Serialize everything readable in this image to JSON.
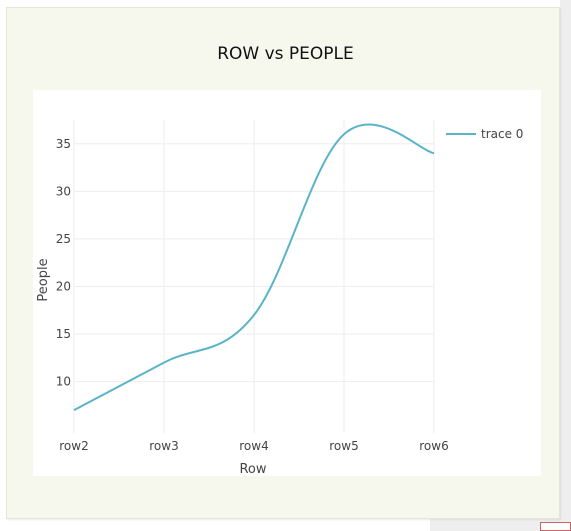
{
  "colors": {
    "panel_background": "#f6f8ee",
    "plot_background": "#ffffff",
    "line": "#5ab4c8",
    "grid": "#eeeeee",
    "text": "#444444"
  },
  "chart_data": {
    "type": "line",
    "title": "ROW vs PEOPLE",
    "xlabel": "Row",
    "ylabel": "People",
    "categories": [
      "row2",
      "row3",
      "row4",
      "row5",
      "row6"
    ],
    "series": [
      {
        "name": "trace 0",
        "values": [
          7,
          12,
          17,
          36,
          34
        ]
      }
    ],
    "yticks": [
      10,
      15,
      20,
      25,
      30,
      35
    ],
    "ylim": [
      4.6,
      37.5
    ],
    "line_shape": "spline",
    "grid": true,
    "legend_position": "top-right"
  }
}
